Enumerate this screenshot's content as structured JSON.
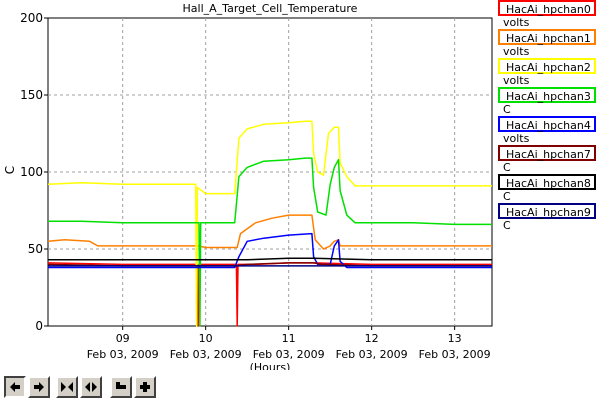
{
  "chart_data": {
    "type": "line",
    "title": "Hall_A_Target_Cell_Temperature",
    "ylabel": "C",
    "xlabel": "(Hours)",
    "xlim": [
      8.1,
      13.45
    ],
    "ylim": [
      0,
      200
    ],
    "yticks": [
      0,
      50,
      100,
      150,
      200
    ],
    "xticks": [
      {
        "value": 9,
        "hour": "09",
        "date": "Feb 03, 2009"
      },
      {
        "value": 10,
        "hour": "10",
        "date": "Feb 03, 2009"
      },
      {
        "value": 11,
        "hour": "11",
        "date": "Feb 03, 2009"
      },
      {
        "value": 12,
        "hour": "12",
        "date": "Feb 03, 2009"
      },
      {
        "value": 13,
        "hour": "13",
        "date": "Feb 03, 2009"
      }
    ],
    "grid": true,
    "legend_position": "right",
    "series": [
      {
        "name": "HacAi_hpchan0",
        "unit": "volts",
        "color": "#ff0000",
        "points": [
          [
            8.1,
            41
          ],
          [
            9.0,
            40
          ],
          [
            9.9,
            40
          ],
          [
            9.91,
            0
          ],
          [
            9.92,
            40
          ],
          [
            10.0,
            40
          ],
          [
            10.37,
            40
          ],
          [
            10.38,
            0
          ],
          [
            10.39,
            40
          ],
          [
            10.6,
            40
          ],
          [
            11.0,
            41
          ],
          [
            11.3,
            41
          ],
          [
            12.0,
            40
          ],
          [
            13.45,
            40
          ]
        ]
      },
      {
        "name": "HacAi_hpchan1",
        "unit": "volts",
        "color": "#ff8000",
        "points": [
          [
            8.1,
            55
          ],
          [
            8.3,
            56
          ],
          [
            8.6,
            55
          ],
          [
            8.7,
            52
          ],
          [
            9.0,
            52
          ],
          [
            9.9,
            52
          ],
          [
            10.0,
            51
          ],
          [
            10.3,
            51
          ],
          [
            10.38,
            51
          ],
          [
            10.42,
            60
          ],
          [
            10.6,
            67
          ],
          [
            10.8,
            70
          ],
          [
            11.0,
            72
          ],
          [
            11.2,
            72
          ],
          [
            11.28,
            72
          ],
          [
            11.32,
            56
          ],
          [
            11.42,
            50
          ],
          [
            11.5,
            52
          ],
          [
            11.55,
            55
          ],
          [
            11.6,
            56
          ],
          [
            11.62,
            52
          ],
          [
            11.8,
            52
          ],
          [
            12.5,
            52
          ],
          [
            13.45,
            52
          ]
        ]
      },
      {
        "name": "HacAi_hpchan2",
        "unit": "volts",
        "color": "#ffff00",
        "points": [
          [
            8.1,
            92
          ],
          [
            8.5,
            93
          ],
          [
            9.0,
            92
          ],
          [
            9.5,
            92
          ],
          [
            9.85,
            92
          ],
          [
            9.88,
            92
          ],
          [
            9.89,
            0
          ],
          [
            9.9,
            90
          ],
          [
            9.95,
            88
          ],
          [
            10.0,
            86
          ],
          [
            10.3,
            86
          ],
          [
            10.35,
            86
          ],
          [
            10.4,
            122
          ],
          [
            10.5,
            128
          ],
          [
            10.7,
            131
          ],
          [
            11.0,
            132
          ],
          [
            11.2,
            133
          ],
          [
            11.28,
            133
          ],
          [
            11.3,
            112
          ],
          [
            11.35,
            100
          ],
          [
            11.42,
            98
          ],
          [
            11.48,
            125
          ],
          [
            11.55,
            129
          ],
          [
            11.6,
            129
          ],
          [
            11.62,
            106
          ],
          [
            11.7,
            97
          ],
          [
            11.8,
            91
          ],
          [
            12.0,
            91
          ],
          [
            12.5,
            91
          ],
          [
            13.0,
            91
          ],
          [
            13.45,
            91
          ]
        ]
      },
      {
        "name": "HacAi_hpchan3",
        "unit": "C",
        "color": "#00e000",
        "points": [
          [
            8.1,
            68
          ],
          [
            8.5,
            68
          ],
          [
            9.0,
            67
          ],
          [
            9.5,
            67
          ],
          [
            9.9,
            67
          ],
          [
            9.92,
            67
          ],
          [
            9.93,
            0
          ],
          [
            9.94,
            67
          ],
          [
            10.0,
            67
          ],
          [
            10.3,
            67
          ],
          [
            10.35,
            67
          ],
          [
            10.4,
            97
          ],
          [
            10.5,
            103
          ],
          [
            10.7,
            107
          ],
          [
            11.0,
            108
          ],
          [
            11.2,
            109
          ],
          [
            11.28,
            109
          ],
          [
            11.3,
            90
          ],
          [
            11.35,
            74
          ],
          [
            11.45,
            72
          ],
          [
            11.5,
            92
          ],
          [
            11.55,
            103
          ],
          [
            11.6,
            108
          ],
          [
            11.62,
            88
          ],
          [
            11.7,
            72
          ],
          [
            11.8,
            67
          ],
          [
            12.0,
            67
          ],
          [
            12.5,
            67
          ],
          [
            13.0,
            66
          ],
          [
            13.45,
            66
          ]
        ]
      },
      {
        "name": "HacAi_hpchan4",
        "unit": "volts",
        "color": "#0000ff",
        "points": [
          [
            8.1,
            38
          ],
          [
            9.0,
            38
          ],
          [
            9.9,
            38
          ],
          [
            10.0,
            38
          ],
          [
            10.35,
            38
          ],
          [
            10.4,
            45
          ],
          [
            10.5,
            55
          ],
          [
            10.7,
            57
          ],
          [
            11.0,
            59
          ],
          [
            11.28,
            60
          ],
          [
            11.3,
            45
          ],
          [
            11.35,
            40
          ],
          [
            11.5,
            40
          ],
          [
            11.55,
            52
          ],
          [
            11.6,
            56
          ],
          [
            11.62,
            42
          ],
          [
            11.7,
            38
          ],
          [
            12.0,
            38
          ],
          [
            13.45,
            38
          ]
        ]
      },
      {
        "name": "HacAi_hpchan7",
        "unit": "C",
        "color": "#800000",
        "points": [
          [
            8.1,
            40
          ],
          [
            9.0,
            39
          ],
          [
            10.0,
            39
          ],
          [
            10.35,
            39
          ],
          [
            10.5,
            40
          ],
          [
            11.0,
            41
          ],
          [
            11.3,
            41
          ],
          [
            11.4,
            40
          ],
          [
            12.0,
            39
          ],
          [
            13.45,
            39
          ]
        ]
      },
      {
        "name": "HacAi_hpchan8",
        "unit": "C",
        "color": "#000000",
        "points": [
          [
            8.1,
            43
          ],
          [
            9.0,
            43
          ],
          [
            10.0,
            43
          ],
          [
            10.5,
            43
          ],
          [
            11.0,
            44
          ],
          [
            11.3,
            44
          ],
          [
            12.0,
            43
          ],
          [
            13.45,
            43
          ]
        ]
      },
      {
        "name": "HacAi_hpchan9",
        "unit": "C",
        "color": "#000080",
        "points": [
          [
            8.1,
            39
          ],
          [
            9.0,
            39
          ],
          [
            10.0,
            39
          ],
          [
            10.5,
            39
          ],
          [
            11.0,
            39
          ],
          [
            12.0,
            39
          ],
          [
            13.45,
            39
          ]
        ]
      }
    ]
  },
  "toolbar": {
    "buttons": [
      {
        "name": "scroll-left-button",
        "icon": "arrow-left-icon",
        "pressed": true
      },
      {
        "name": "scroll-right-button",
        "icon": "arrow-right-icon",
        "pressed": false
      },
      {
        "name": "zoom-in-time-button",
        "icon": "zoom-in-arrows-icon",
        "pressed": false
      },
      {
        "name": "zoom-out-time-button",
        "icon": "zoom-out-arrows-icon",
        "pressed": false
      },
      {
        "name": "minus-button",
        "icon": "minus-icon",
        "pressed": false
      },
      {
        "name": "plus-button",
        "icon": "plus-icon",
        "pressed": false
      }
    ]
  }
}
